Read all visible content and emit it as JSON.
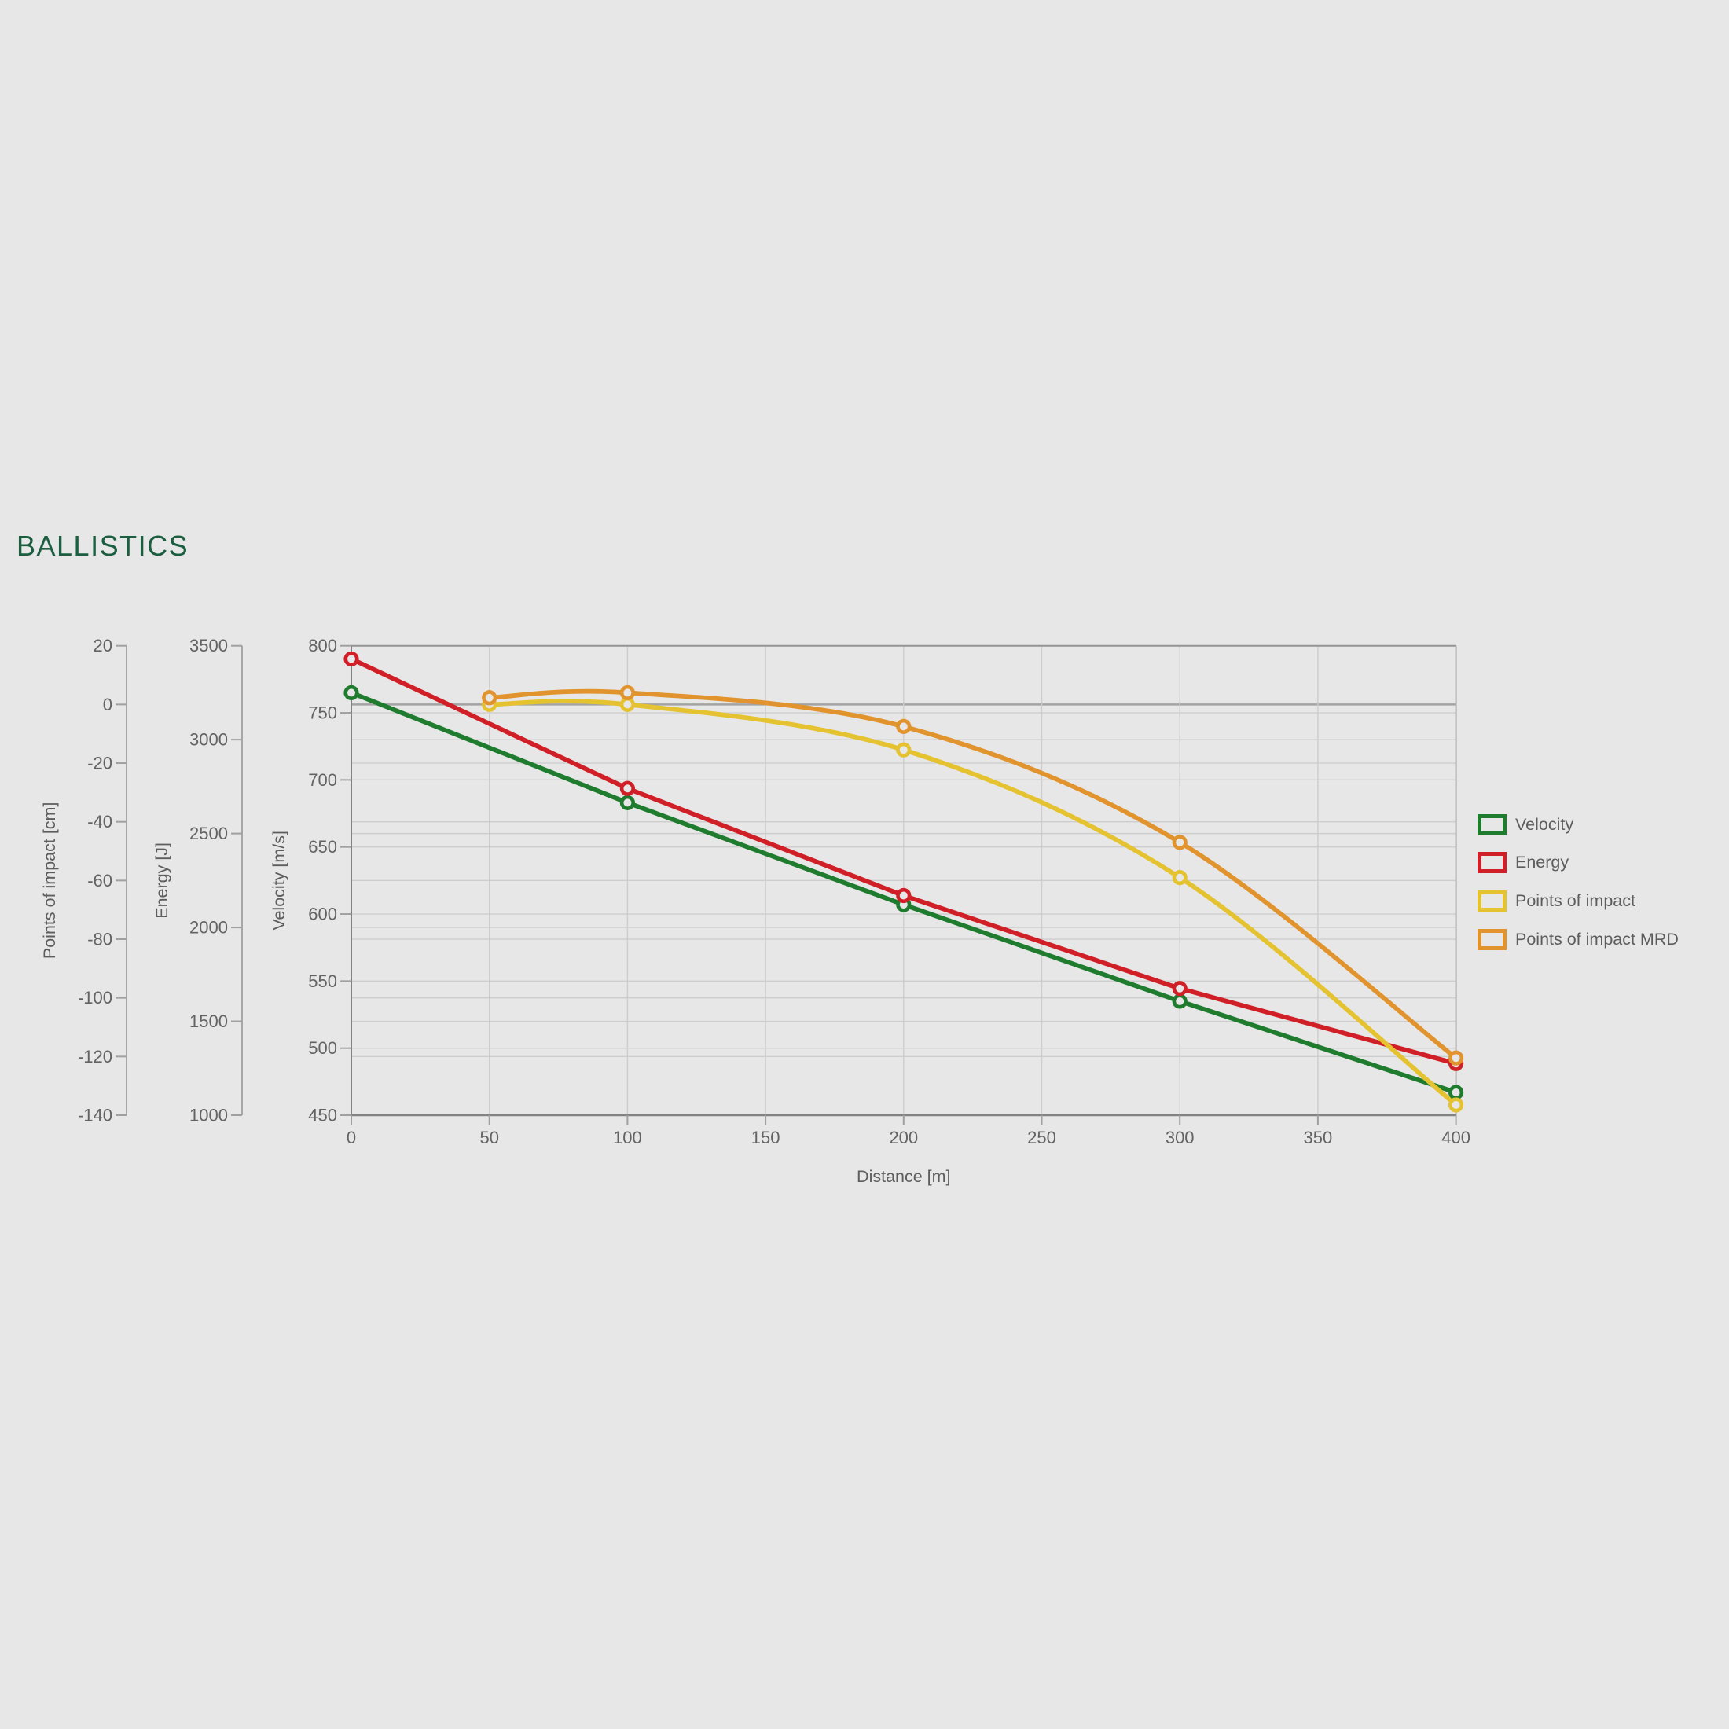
{
  "title": "BALLISTICS",
  "colors": {
    "bg": "#e7e7e7",
    "title": "#1b5e40",
    "text": "#5d5d5d",
    "tick": "#636363",
    "grid": "#cdcdcd",
    "grid-dark": "#a3a3a3",
    "axis": "#a0a0a0",
    "axis-dark": "#828282",
    "green": "#1f7c2e",
    "red": "#d01f26",
    "yellow": "#e5c230",
    "orange": "#e1942d",
    "marker-fill": "#e7e7e7"
  },
  "chart_data": {
    "type": "line",
    "title": "BALLISTICS",
    "xlabel": "Distance [m]",
    "xlim": [
      0,
      400
    ],
    "x_ticks": [
      0,
      50,
      100,
      150,
      200,
      250,
      300,
      350,
      400
    ],
    "grid": true,
    "legend_position": "right",
    "axes": [
      {
        "id": "poi",
        "label": "Points of impact [cm]",
        "range": [
          -140,
          20
        ],
        "ticks": [
          20,
          0,
          -20,
          -40,
          -60,
          -80,
          -100,
          -120,
          -140
        ],
        "zero_line": 0
      },
      {
        "id": "energy",
        "label": "Energy [J]",
        "range": [
          1000,
          3500
        ],
        "ticks": [
          3500,
          3000,
          2500,
          2000,
          1500,
          1000
        ]
      },
      {
        "id": "velocity",
        "label": "Velocity [m/s]",
        "range": [
          450,
          800
        ],
        "ticks": [
          800,
          750,
          700,
          650,
          600,
          550,
          500,
          450
        ]
      }
    ],
    "series": [
      {
        "name": "Velocity",
        "axis": "velocity",
        "color_key": "green",
        "smooth": false,
        "x": [
          0,
          100,
          200,
          300,
          400
        ],
        "values": [
          765,
          683,
          607,
          535,
          467
        ]
      },
      {
        "name": "Energy",
        "axis": "energy",
        "color_key": "red",
        "smooth": false,
        "x": [
          0,
          100,
          200,
          300,
          400
        ],
        "values": [
          3430,
          2740,
          2170,
          1675,
          1275
        ]
      },
      {
        "name": "Points of impact",
        "axis": "poi",
        "color_key": "yellow",
        "smooth": true,
        "x": [
          50,
          100,
          200,
          300,
          400
        ],
        "values": [
          0,
          0,
          -15.5,
          -59,
          -136.5
        ]
      },
      {
        "name": "Points of impact MRD",
        "axis": "poi",
        "color_key": "orange",
        "smooth": true,
        "x": [
          50,
          100,
          200,
          300,
          400
        ],
        "values": [
          2.3,
          4,
          -7.5,
          -47,
          -120.5
        ]
      }
    ]
  }
}
